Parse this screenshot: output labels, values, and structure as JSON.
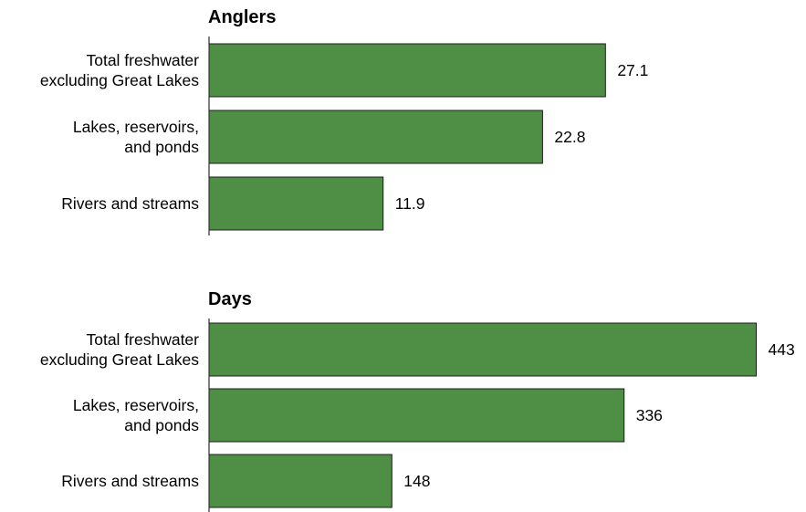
{
  "chart_data": [
    {
      "type": "bar",
      "orientation": "horizontal",
      "title": "Anglers",
      "categories": [
        [
          "Total freshwater",
          "excluding Great Lakes"
        ],
        [
          "Lakes, reservoirs,",
          "and ponds"
        ],
        [
          "Rivers and streams"
        ]
      ],
      "values": [
        27.1,
        22.8,
        11.9
      ],
      "value_labels": [
        "27.1",
        "22.8",
        "11.9"
      ],
      "xlim": [
        0,
        38
      ],
      "grid": false,
      "bar_color": "#4e8e45"
    },
    {
      "type": "bar",
      "orientation": "horizontal",
      "title": "Days",
      "categories": [
        [
          "Total freshwater",
          "excluding Great Lakes"
        ],
        [
          "Lakes, reservoirs,",
          "and ponds"
        ],
        [
          "Rivers and streams"
        ]
      ],
      "values": [
        443,
        336,
        148
      ],
      "value_labels": [
        "443",
        "336",
        "148"
      ],
      "xlim": [
        0,
        450
      ],
      "grid": false,
      "bar_color": "#4e8e45"
    }
  ]
}
